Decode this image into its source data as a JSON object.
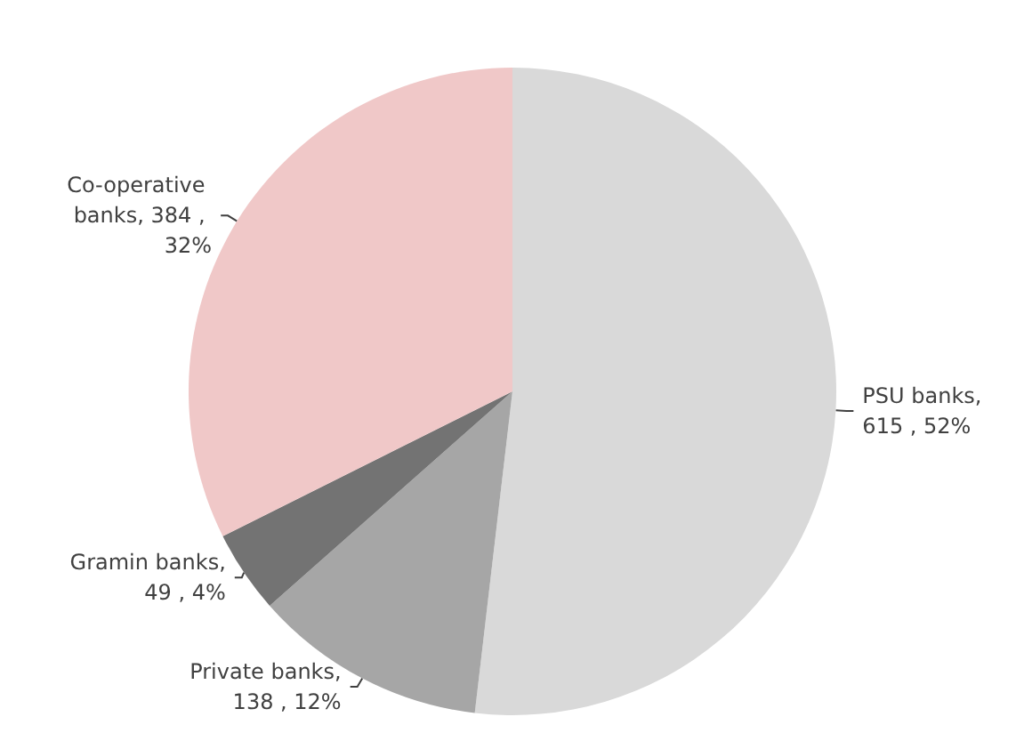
{
  "chart_data": {
    "type": "pie",
    "categories": [
      "PSU banks",
      "Private banks",
      "Gramin banks",
      "Co-operative banks"
    ],
    "values": [
      615,
      138,
      49,
      384
    ],
    "colors": [
      "#d9d9d9",
      "#a6a6a6",
      "#737373",
      "#f0c8c8"
    ],
    "value_labels": [
      ", 615 , 52%",
      ", 138 , 12%",
      ", 49 , 4%",
      ", 384 , 32%"
    ]
  }
}
